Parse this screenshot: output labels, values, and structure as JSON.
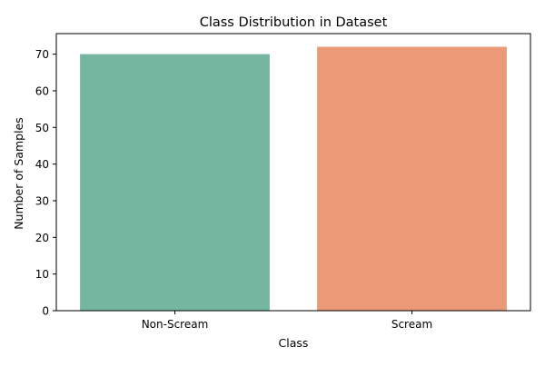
{
  "chart_data": {
    "type": "bar",
    "title": "Class Distribution in Dataset",
    "xlabel": "Class",
    "ylabel": "Number of Samples",
    "categories": [
      "Non-Scream",
      "Scream"
    ],
    "values": [
      70,
      72
    ],
    "colors": [
      "#75b6a1",
      "#eb9a77"
    ],
    "ylim": [
      0,
      75.6
    ],
    "yticks": [
      0,
      10,
      20,
      30,
      40,
      50,
      60,
      70
    ],
    "grid": false,
    "legend": "none"
  }
}
